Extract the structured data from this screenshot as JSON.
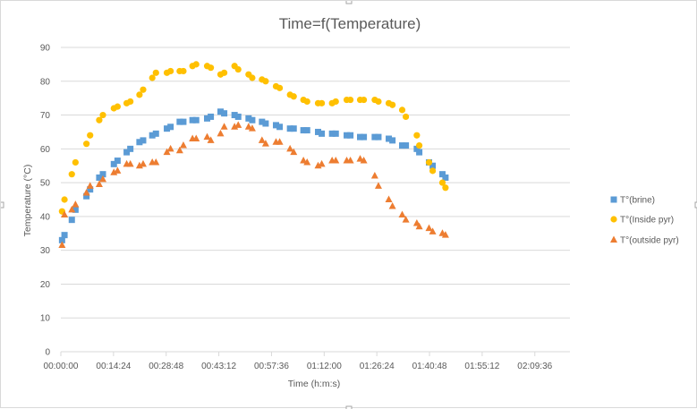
{
  "colors": {
    "brine": "#5b9bd5",
    "inside": "#ffc000",
    "outside": "#ed7d31",
    "grid": "#d9d9d9",
    "text": "#595959"
  },
  "chart_data": {
    "type": "scatter",
    "title": "Time=f(Temperature)",
    "xlabel": "Time (h:m:s)",
    "ylabel": "Temperature (°C)",
    "xlim_seconds": [
      0,
      8352
    ],
    "ylim": [
      0,
      90
    ],
    "x_ticks_seconds": [
      0,
      864,
      1728,
      2592,
      3456,
      4320,
      5184,
      6048,
      6912,
      7776
    ],
    "x_tick_labels": [
      "00:00:00",
      "00:14:24",
      "00:28:48",
      "00:43:12",
      "00:57:36",
      "01:12:00",
      "01:26:24",
      "01:40:48",
      "01:55:12",
      "02:09:36"
    ],
    "y_ticks": [
      0,
      10,
      20,
      30,
      40,
      50,
      60,
      70,
      80,
      90
    ],
    "grid": true,
    "legend_position": "right",
    "series": [
      {
        "name": "T°(brine)",
        "marker": "square",
        "points": [
          [
            20,
            33
          ],
          [
            60,
            34.5
          ],
          [
            180,
            39
          ],
          [
            240,
            42
          ],
          [
            420,
            46
          ],
          [
            480,
            48
          ],
          [
            630,
            51.5
          ],
          [
            690,
            52.5
          ],
          [
            870,
            55.5
          ],
          [
            930,
            56.5
          ],
          [
            1080,
            59
          ],
          [
            1140,
            60
          ],
          [
            1290,
            62
          ],
          [
            1350,
            62.5
          ],
          [
            1500,
            64
          ],
          [
            1560,
            64.5
          ],
          [
            1740,
            66
          ],
          [
            1800,
            66.5
          ],
          [
            1950,
            68
          ],
          [
            2010,
            68
          ],
          [
            2160,
            68.5
          ],
          [
            2220,
            68.5
          ],
          [
            2400,
            69
          ],
          [
            2460,
            69.5
          ],
          [
            2620,
            71
          ],
          [
            2680,
            70.5
          ],
          [
            2850,
            70
          ],
          [
            2910,
            69.5
          ],
          [
            3080,
            69
          ],
          [
            3140,
            68.5
          ],
          [
            3300,
            68
          ],
          [
            3360,
            67.5
          ],
          [
            3530,
            67
          ],
          [
            3590,
            66.5
          ],
          [
            3760,
            66
          ],
          [
            3820,
            66
          ],
          [
            3980,
            65.5
          ],
          [
            4040,
            65.5
          ],
          [
            4220,
            65
          ],
          [
            4280,
            64.5
          ],
          [
            4450,
            64.5
          ],
          [
            4510,
            64.5
          ],
          [
            4690,
            64
          ],
          [
            4750,
            64
          ],
          [
            4910,
            63.5
          ],
          [
            4970,
            63.5
          ],
          [
            5150,
            63.5
          ],
          [
            5210,
            63.5
          ],
          [
            5380,
            63
          ],
          [
            5440,
            62.5
          ],
          [
            5600,
            61
          ],
          [
            5660,
            61
          ],
          [
            5840,
            60
          ],
          [
            5880,
            59
          ],
          [
            6040,
            56
          ],
          [
            6100,
            55
          ],
          [
            6260,
            52.5
          ],
          [
            6310,
            51.5
          ]
        ]
      },
      {
        "name": "T°(Inside pyr)",
        "marker": "circle",
        "points": [
          [
            20,
            41.5
          ],
          [
            60,
            45
          ],
          [
            180,
            52.5
          ],
          [
            240,
            56
          ],
          [
            420,
            61.5
          ],
          [
            480,
            64
          ],
          [
            630,
            68.5
          ],
          [
            690,
            70
          ],
          [
            870,
            72
          ],
          [
            930,
            72.5
          ],
          [
            1080,
            73.5
          ],
          [
            1140,
            74
          ],
          [
            1290,
            76
          ],
          [
            1350,
            77.5
          ],
          [
            1500,
            81
          ],
          [
            1560,
            82.5
          ],
          [
            1740,
            82.5
          ],
          [
            1800,
            83
          ],
          [
            1950,
            83
          ],
          [
            2010,
            83
          ],
          [
            2160,
            84.5
          ],
          [
            2220,
            85
          ],
          [
            2400,
            84.5
          ],
          [
            2460,
            84
          ],
          [
            2620,
            82
          ],
          [
            2680,
            82.5
          ],
          [
            2850,
            84.5
          ],
          [
            2910,
            83.5
          ],
          [
            3080,
            82
          ],
          [
            3140,
            81
          ],
          [
            3300,
            80.5
          ],
          [
            3360,
            80
          ],
          [
            3530,
            78.5
          ],
          [
            3590,
            78
          ],
          [
            3760,
            76
          ],
          [
            3820,
            75.5
          ],
          [
            3980,
            74.5
          ],
          [
            4040,
            74
          ],
          [
            4220,
            73.5
          ],
          [
            4280,
            73.5
          ],
          [
            4450,
            73.5
          ],
          [
            4510,
            74
          ],
          [
            4690,
            74.5
          ],
          [
            4750,
            74.5
          ],
          [
            4910,
            74.5
          ],
          [
            4970,
            74.5
          ],
          [
            5150,
            74.5
          ],
          [
            5210,
            74
          ],
          [
            5380,
            73.5
          ],
          [
            5440,
            73
          ],
          [
            5600,
            71.5
          ],
          [
            5660,
            69.5
          ],
          [
            5840,
            64
          ],
          [
            5880,
            61
          ],
          [
            6040,
            56
          ],
          [
            6100,
            53.5
          ],
          [
            6260,
            50
          ],
          [
            6310,
            48.5
          ]
        ]
      },
      {
        "name": "T°(outside pyr)",
        "marker": "triangle",
        "points": [
          [
            20,
            31.5
          ],
          [
            60,
            40.5
          ],
          [
            180,
            42
          ],
          [
            240,
            43.5
          ],
          [
            420,
            47
          ],
          [
            480,
            49
          ],
          [
            630,
            49.5
          ],
          [
            690,
            51
          ],
          [
            870,
            53
          ],
          [
            930,
            53.5
          ],
          [
            1080,
            55.5
          ],
          [
            1140,
            55.5
          ],
          [
            1290,
            55
          ],
          [
            1350,
            55.5
          ],
          [
            1500,
            56
          ],
          [
            1560,
            56
          ],
          [
            1740,
            59
          ],
          [
            1800,
            60
          ],
          [
            1950,
            59.5
          ],
          [
            2010,
            61
          ],
          [
            2160,
            63
          ],
          [
            2220,
            63
          ],
          [
            2400,
            63.5
          ],
          [
            2460,
            62.5
          ],
          [
            2620,
            64.5
          ],
          [
            2680,
            66.5
          ],
          [
            2850,
            66.5
          ],
          [
            2910,
            67
          ],
          [
            3080,
            66.5
          ],
          [
            3140,
            66
          ],
          [
            3300,
            62.5
          ],
          [
            3360,
            61.5
          ],
          [
            3530,
            62
          ],
          [
            3590,
            62
          ],
          [
            3760,
            60
          ],
          [
            3820,
            59
          ],
          [
            3980,
            56.5
          ],
          [
            4040,
            56
          ],
          [
            4220,
            55
          ],
          [
            4280,
            55.5
          ],
          [
            4450,
            56.5
          ],
          [
            4510,
            56.5
          ],
          [
            4690,
            56.5
          ],
          [
            4750,
            56.5
          ],
          [
            4910,
            57
          ],
          [
            4970,
            56.5
          ],
          [
            5150,
            52
          ],
          [
            5210,
            49
          ],
          [
            5380,
            45
          ],
          [
            5440,
            43
          ],
          [
            5600,
            40.5
          ],
          [
            5660,
            39
          ],
          [
            5840,
            38
          ],
          [
            5880,
            37
          ],
          [
            6040,
            36.5
          ],
          [
            6100,
            35.5
          ],
          [
            6260,
            35
          ],
          [
            6310,
            34.5
          ]
        ]
      }
    ]
  }
}
